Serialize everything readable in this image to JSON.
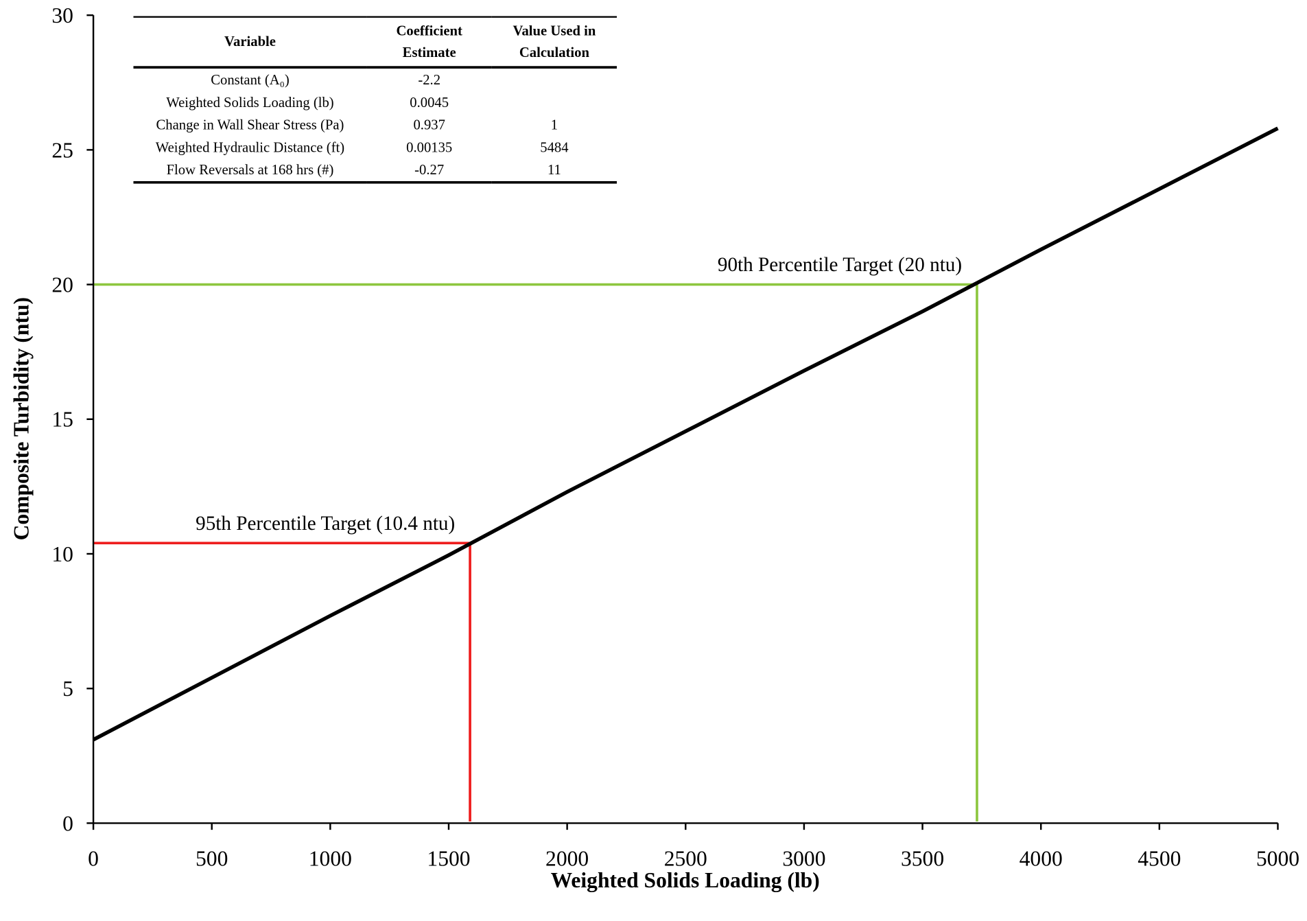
{
  "chart_data": {
    "type": "line",
    "x_label": "Weighted Solids Loading (lb)",
    "y_label": "Composite Turbidity (ntu)",
    "series": [
      {
        "color": "#000000",
        "x": [
          0,
          500,
          1000,
          1500,
          2000,
          2500,
          3000,
          3500,
          4000,
          4500,
          5000
        ],
        "values": [
          3.1,
          5.4,
          7.7,
          9.95,
          12.3,
          14.55,
          16.8,
          19.0,
          21.3,
          23.55,
          25.8
        ]
      }
    ],
    "reference_lines": [
      {
        "label": "95th Percentile Target (10.4 ntu)",
        "x": 1590,
        "y": 10.4,
        "color": "#ee1c1c"
      },
      {
        "label": "90th Percentile Target (20 ntu)",
        "x": 3730,
        "y": 20,
        "color": "#8dc63f"
      }
    ],
    "xlim": [
      0,
      5000
    ],
    "xticks": [
      0,
      500,
      1000,
      1500,
      2000,
      2500,
      3000,
      3500,
      4000,
      4500,
      5000
    ],
    "ylim": [
      0,
      30
    ],
    "yticks": [
      0,
      5,
      10,
      15,
      20,
      25,
      30
    ],
    "grid": false
  },
  "table": {
    "columns": [
      "Variable",
      "Coefficient Estimate",
      "Value Used in Calculation"
    ],
    "rows": [
      [
        "Constant (A₀)",
        "-2.2",
        null
      ],
      [
        "Weighted Solids Loading (lb)",
        "0.0045",
        null
      ],
      [
        "Change in Wall Shear Stress (Pa)",
        "0.937",
        "1"
      ],
      [
        "Weighted Hydraulic Distance (ft)",
        "0.00135",
        "5484"
      ],
      [
        "Flow Reversals at 168 hrs (#)",
        "-0.27",
        "11"
      ]
    ]
  }
}
